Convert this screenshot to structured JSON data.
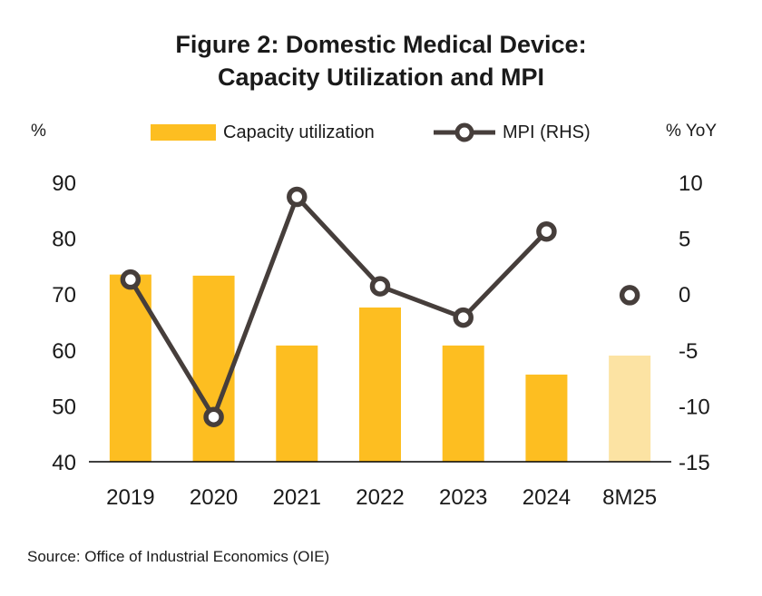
{
  "chart_data": {
    "type": "bar",
    "title_lines": [
      "Figure 2:  Domestic Medical Device:",
      "Capacity Utilization and MPI"
    ],
    "left_unit": "%",
    "right_unit": "% YoY",
    "categories": [
      "2019",
      "2020",
      "2021",
      "2022",
      "2023",
      "2024",
      "8M25"
    ],
    "left_axis": {
      "min": 40,
      "max": 90,
      "ticks": [
        "90",
        "80",
        "70",
        "60",
        "50",
        "40"
      ],
      "tick_values": [
        90,
        80,
        70,
        60,
        50,
        40
      ]
    },
    "right_axis": {
      "min": -15,
      "max": 10,
      "ticks": [
        "10",
        "5",
        "0",
        "-5",
        "-10",
        "-15"
      ],
      "tick_values": [
        10,
        5,
        0,
        -5,
        -10,
        -15
      ]
    },
    "series": [
      {
        "name": "Capacity utilization",
        "type": "bar",
        "axis": "left",
        "values": [
          73.5,
          73.3,
          60.8,
          67.6,
          60.8,
          55.6,
          59.0
        ],
        "color": "#FDBE21",
        "highlight_last_color": "#FCE3A3"
      },
      {
        "name": "MPI (RHS)",
        "type": "line",
        "axis": "right",
        "values": [
          1.3,
          -11.0,
          8.7,
          0.7,
          -2.1,
          5.6,
          -0.1
        ],
        "color": "#463E3B",
        "connect_last": false
      }
    ],
    "legend_position": "top",
    "grid": false,
    "source": "Source: Office of Industrial Economics (OIE)"
  }
}
